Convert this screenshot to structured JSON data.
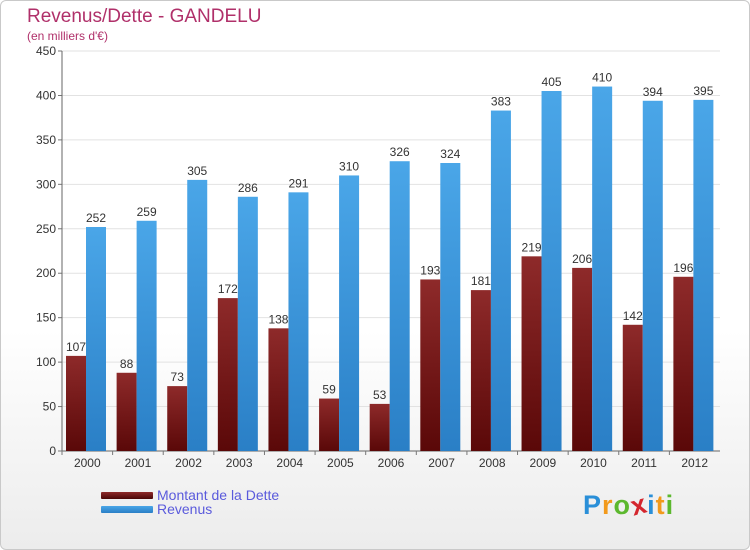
{
  "chart_data": {
    "type": "bar",
    "title": "Revenus/Dette - GANDELU",
    "subtitle": "(en milliers d'€)",
    "categories": [
      "2000",
      "2001",
      "2002",
      "2003",
      "2004",
      "2005",
      "2006",
      "2007",
      "2008",
      "2009",
      "2010",
      "2011",
      "2012"
    ],
    "series": [
      {
        "name": "Montant de la Dette",
        "color": "#7a1818",
        "values": [
          107,
          88,
          73,
          172,
          138,
          59,
          53,
          193,
          181,
          219,
          206,
          142,
          196
        ]
      },
      {
        "name": "Revenus",
        "color": "#3d97dc",
        "values": [
          252,
          259,
          305,
          286,
          291,
          310,
          326,
          324,
          383,
          405,
          410,
          394,
          395
        ]
      }
    ],
    "ylim": [
      0,
      450
    ],
    "yticks": [
      0,
      50,
      100,
      150,
      200,
      250,
      300,
      350,
      400,
      450
    ],
    "grid": true,
    "legend_position": "bottom-left"
  },
  "logo": {
    "letters": [
      "P",
      "r",
      "o",
      "x",
      "i",
      "t",
      "i"
    ],
    "colors": [
      "#2a8fd8",
      "#f29a1c",
      "#5cb82e",
      "#d4262e",
      "#2a8fd8",
      "#f29a1c",
      "#5cb82e"
    ]
  }
}
